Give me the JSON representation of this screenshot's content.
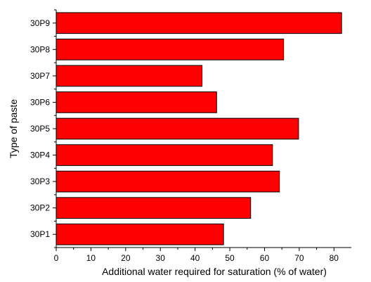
{
  "chart_data": {
    "type": "bar",
    "orientation": "horizontal",
    "categories": [
      "30P1",
      "30P2",
      "30P3",
      "30P4",
      "30P5",
      "30P6",
      "30P7",
      "30P8",
      "30P9"
    ],
    "values": [
      48.2,
      56.0,
      64.3,
      62.3,
      69.8,
      46.2,
      42.0,
      65.5,
      82.2
    ],
    "xlabel": "Additional water required for saturation (% of water)",
    "ylabel": "Type of paste",
    "xlim": [
      0,
      85
    ],
    "xticks": [
      0,
      10,
      20,
      30,
      40,
      50,
      60,
      70,
      80
    ],
    "bar_color": "#ff0000",
    "bar_edge_color": "#000000",
    "grid": false,
    "legend": "none"
  }
}
